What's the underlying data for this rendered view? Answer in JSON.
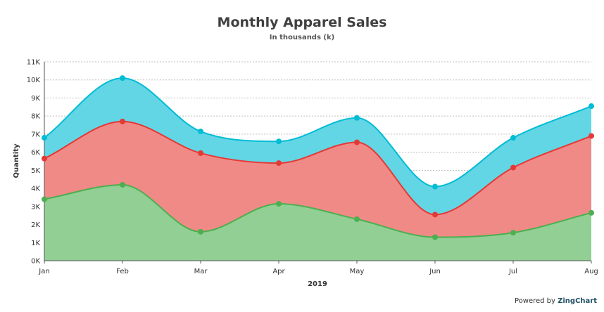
{
  "credit": {
    "prefix": "Powered by",
    "brand": "ZingChart"
  },
  "chart_data": {
    "type": "area",
    "stacked": true,
    "smooth": true,
    "title": "Monthly Apparel Sales",
    "subtitle": "In thousands (k)",
    "xlabel": "2019",
    "ylabel": "Quantity",
    "categories": [
      "Jan",
      "Feb",
      "Mar",
      "Apr",
      "May",
      "Jun",
      "Jul",
      "Aug"
    ],
    "ylim": [
      0,
      11000
    ],
    "yticks": [
      0,
      1000,
      2000,
      3000,
      4000,
      5000,
      6000,
      7000,
      8000,
      9000,
      10000,
      11000
    ],
    "ytick_labels": [
      "0K",
      "1K",
      "2K",
      "3K",
      "4K",
      "5K",
      "6K",
      "7K",
      "8K",
      "9K",
      "10K",
      "11K"
    ],
    "grid": true,
    "legend": "none",
    "series": [
      {
        "color": "#4caf50",
        "fill": "#91cf94",
        "values": [
          3400,
          4200,
          1600,
          3150,
          2300,
          1300,
          1550,
          2650
        ]
      },
      {
        "color": "#e53935",
        "fill": "#f08a87",
        "values": [
          2250,
          3500,
          4350,
          2250,
          4250,
          1250,
          3600,
          4250
        ]
      },
      {
        "color": "#00bcd4",
        "fill": "#62d6e5",
        "values": [
          1150,
          2400,
          1200,
          1200,
          1350,
          1550,
          1650,
          1650
        ]
      }
    ]
  }
}
